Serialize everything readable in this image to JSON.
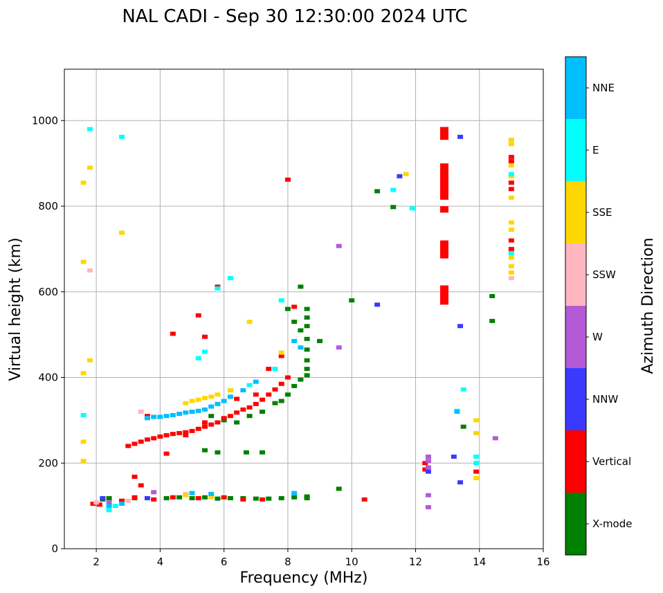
{
  "chart_data": {
    "type": "scatter",
    "title": "NAL CADI - Sep 30 12:30:00 2024 UTC",
    "xlabel": "Frequency (MHz)",
    "ylabel": "Virtual height (km)",
    "xlim": [
      1,
      16
    ],
    "ylim": [
      0,
      1120
    ],
    "xticks": [
      2,
      4,
      6,
      8,
      10,
      12,
      14,
      16
    ],
    "yticks": [
      0,
      200,
      400,
      600,
      800,
      1000
    ],
    "grid": true,
    "colorbar": {
      "label": "Azimuth Direction",
      "categories": [
        {
          "name": "X-mode",
          "color": "#008000"
        },
        {
          "name": "Vertical",
          "color": "#ff0000"
        },
        {
          "name": "NNW",
          "color": "#3a3aff"
        },
        {
          "name": "W",
          "color": "#b45ad6"
        },
        {
          "name": "SSW",
          "color": "#ffb6c1"
        },
        {
          "name": "SSE",
          "color": "#ffd700"
        },
        {
          "name": "E",
          "color": "#00ffff"
        },
        {
          "name": "NNE",
          "color": "#00bfff"
        }
      ]
    },
    "series": [
      {
        "name": "X-mode",
        "points": [
          [
            2.2,
            115
          ],
          [
            2.4,
            118
          ],
          [
            2.8,
            112
          ],
          [
            3.2,
            118
          ],
          [
            4.2,
            118
          ],
          [
            4.6,
            120
          ],
          [
            5.0,
            118
          ],
          [
            5.4,
            120
          ],
          [
            5.8,
            117
          ],
          [
            6.2,
            118
          ],
          [
            6.6,
            118
          ],
          [
            7.0,
            117
          ],
          [
            7.4,
            117
          ],
          [
            7.8,
            118
          ],
          [
            8.2,
            120
          ],
          [
            8.6,
            122
          ],
          [
            8.6,
            118
          ],
          [
            5.6,
            310
          ],
          [
            6.0,
            300
          ],
          [
            6.4,
            295
          ],
          [
            6.8,
            310
          ],
          [
            7.2,
            320
          ],
          [
            7.6,
            340
          ],
          [
            7.8,
            345
          ],
          [
            8.0,
            360
          ],
          [
            8.2,
            380
          ],
          [
            8.4,
            395
          ],
          [
            8.6,
            405
          ],
          [
            8.6,
            420
          ],
          [
            8.6,
            440
          ],
          [
            8.6,
            465
          ],
          [
            8.6,
            490
          ],
          [
            8.6,
            520
          ],
          [
            8.6,
            540
          ],
          [
            8.6,
            560
          ],
          [
            8.4,
            510
          ],
          [
            8.2,
            530
          ],
          [
            8.0,
            560
          ],
          [
            8.4,
            612
          ],
          [
            9.0,
            485
          ],
          [
            10.0,
            580
          ],
          [
            10.8,
            835
          ],
          [
            11.3,
            798
          ],
          [
            13.5,
            285
          ],
          [
            14.4,
            590
          ],
          [
            14.4,
            532
          ],
          [
            5.4,
            230
          ],
          [
            5.8,
            225
          ],
          [
            6.7,
            225
          ],
          [
            7.2,
            225
          ],
          [
            9.6,
            140
          ]
        ]
      },
      {
        "name": "Vertical",
        "points": [
          [
            1.9,
            105
          ],
          [
            2.1,
            103
          ],
          [
            2.8,
            112
          ],
          [
            3.2,
            120
          ],
          [
            3.2,
            168
          ],
          [
            3.4,
            148
          ],
          [
            3.8,
            115
          ],
          [
            4.4,
            120
          ],
          [
            5.2,
            118
          ],
          [
            6.0,
            120
          ],
          [
            6.6,
            115
          ],
          [
            7.2,
            115
          ],
          [
            3.0,
            240
          ],
          [
            3.2,
            245
          ],
          [
            3.4,
            250
          ],
          [
            3.6,
            255
          ],
          [
            3.8,
            258
          ],
          [
            4.0,
            262
          ],
          [
            4.2,
            265
          ],
          [
            4.4,
            268
          ],
          [
            4.6,
            270
          ],
          [
            4.8,
            272
          ],
          [
            5.0,
            275
          ],
          [
            5.2,
            280
          ],
          [
            5.4,
            285
          ],
          [
            5.6,
            290
          ],
          [
            5.8,
            295
          ],
          [
            6.0,
            305
          ],
          [
            6.2,
            310
          ],
          [
            6.4,
            318
          ],
          [
            6.6,
            325
          ],
          [
            6.8,
            330
          ],
          [
            7.0,
            338
          ],
          [
            7.2,
            348
          ],
          [
            7.4,
            360
          ],
          [
            7.6,
            372
          ],
          [
            7.8,
            385
          ],
          [
            8.0,
            400
          ],
          [
            3.6,
            310
          ],
          [
            4.2,
            222
          ],
          [
            4.8,
            265
          ],
          [
            5.4,
            295
          ],
          [
            6.4,
            350
          ],
          [
            7.0,
            360
          ],
          [
            7.4,
            420
          ],
          [
            7.8,
            450
          ],
          [
            8.2,
            565
          ],
          [
            8.0,
            862
          ],
          [
            4.4,
            502
          ],
          [
            5.2,
            545
          ],
          [
            5.4,
            495
          ],
          [
            5.8,
            612
          ],
          [
            10.4,
            115
          ],
          [
            12.3,
            185
          ],
          [
            12.3,
            200
          ],
          [
            13.9,
            180
          ],
          [
            15.0,
            700
          ],
          [
            15.0,
            720
          ],
          [
            15.0,
            840
          ],
          [
            15.0,
            855
          ],
          [
            15.0,
            905
          ],
          [
            15.0,
            915
          ]
        ]
      },
      {
        "name": "NNW",
        "points": [
          [
            13.4,
            962
          ],
          [
            11.5,
            870
          ],
          [
            10.8,
            570
          ],
          [
            13.4,
            520
          ],
          [
            13.2,
            215
          ],
          [
            13.4,
            155
          ],
          [
            12.4,
            180
          ],
          [
            2.2,
            118
          ],
          [
            3.6,
            118
          ]
        ]
      },
      {
        "name": "W",
        "points": [
          [
            12.4,
            215
          ],
          [
            12.4,
            205
          ],
          [
            12.4,
            190
          ],
          [
            12.4,
            125
          ],
          [
            12.4,
            97
          ],
          [
            14.5,
            258
          ],
          [
            9.6,
            707
          ],
          [
            9.6,
            470
          ],
          [
            3.8,
            132
          ],
          [
            2.4,
            108
          ]
        ]
      },
      {
        "name": "SSW",
        "points": [
          [
            1.8,
            650
          ],
          [
            3.4,
            320
          ],
          [
            3.6,
            305
          ],
          [
            2.0,
            108
          ],
          [
            3.0,
            112
          ],
          [
            4.8,
            128
          ],
          [
            15.0,
            632
          ]
        ]
      },
      {
        "name": "SSE",
        "points": [
          [
            4.8,
            340
          ],
          [
            5.0,
            345
          ],
          [
            5.2,
            348
          ],
          [
            5.4,
            352
          ],
          [
            5.6,
            355
          ],
          [
            5.8,
            360
          ],
          [
            6.2,
            370
          ],
          [
            1.6,
            855
          ],
          [
            1.8,
            890
          ],
          [
            1.6,
            670
          ],
          [
            1.8,
            440
          ],
          [
            1.6,
            410
          ],
          [
            1.6,
            250
          ],
          [
            1.6,
            205
          ],
          [
            2.8,
            738
          ],
          [
            11.7,
            875
          ],
          [
            13.9,
            300
          ],
          [
            13.9,
            270
          ],
          [
            13.9,
            165
          ],
          [
            15.0,
            955
          ],
          [
            15.0,
            945
          ],
          [
            15.0,
            895
          ],
          [
            15.0,
            870
          ],
          [
            15.0,
            820
          ],
          [
            15.0,
            762
          ],
          [
            15.0,
            745
          ],
          [
            15.0,
            680
          ],
          [
            15.0,
            660
          ],
          [
            15.0,
            645
          ],
          [
            6.8,
            530
          ],
          [
            7.8,
            458
          ],
          [
            4.8,
            125
          ],
          [
            5.6,
            120
          ]
        ]
      },
      {
        "name": "E",
        "points": [
          [
            1.8,
            980
          ],
          [
            2.8,
            962
          ],
          [
            11.3,
            838
          ],
          [
            11.9,
            795
          ],
          [
            6.2,
            632
          ],
          [
            5.8,
            608
          ],
          [
            7.8,
            580
          ],
          [
            13.3,
            322
          ],
          [
            13.5,
            372
          ],
          [
            13.9,
            215
          ],
          [
            13.9,
            200
          ],
          [
            1.6,
            312
          ],
          [
            2.4,
            90
          ],
          [
            2.6,
            100
          ],
          [
            15.0,
            875
          ],
          [
            15.0,
            690
          ],
          [
            6.8,
            382
          ],
          [
            7.6,
            420
          ],
          [
            5.2,
            445
          ],
          [
            5.4,
            460
          ]
        ]
      },
      {
        "name": "NNE",
        "points": [
          [
            3.6,
            305
          ],
          [
            3.8,
            308
          ],
          [
            4.0,
            308
          ],
          [
            4.2,
            310
          ],
          [
            4.4,
            312
          ],
          [
            4.6,
            315
          ],
          [
            4.8,
            318
          ],
          [
            5.0,
            320
          ],
          [
            5.2,
            322
          ],
          [
            5.4,
            325
          ],
          [
            5.6,
            332
          ],
          [
            5.8,
            338
          ],
          [
            6.0,
            345
          ],
          [
            6.2,
            355
          ],
          [
            6.6,
            370
          ],
          [
            7.0,
            390
          ],
          [
            8.2,
            485
          ],
          [
            8.4,
            470
          ],
          [
            2.4,
            100
          ],
          [
            2.8,
            105
          ],
          [
            5.0,
            130
          ],
          [
            5.6,
            128
          ],
          [
            8.2,
            130
          ],
          [
            13.3,
            320
          ]
        ]
      }
    ]
  }
}
